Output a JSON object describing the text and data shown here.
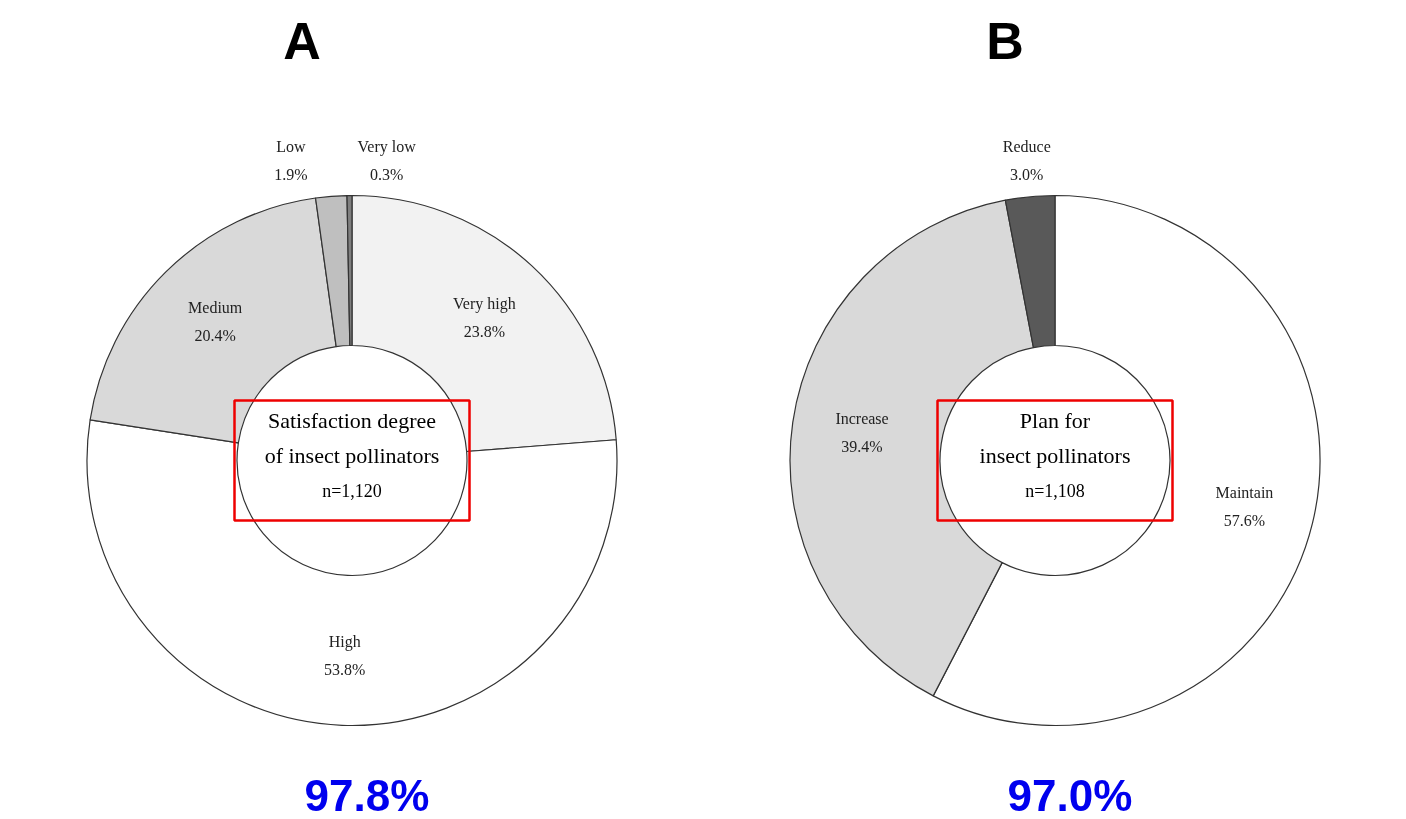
{
  "chart_data": [
    {
      "type": "donut",
      "title": "A",
      "subtitle": "Satisfaction degree\nof insect pollinators\nn=1,120",
      "categories": [
        "Very high",
        "High",
        "Medium",
        "Low",
        "Very low"
      ],
      "values": [
        23.8,
        53.8,
        20.4,
        1.9,
        0.3
      ],
      "value_labels": [
        "23.8%",
        "53.8%",
        "20.4%",
        "1.9%",
        "0.3%"
      ],
      "colors": [
        "#f2f2f2",
        "#ffffff",
        "#d9d9d9",
        "#bfbfbf",
        "#7f7f7f"
      ],
      "annotations": [
        "97.8%"
      ],
      "legend": false
    },
    {
      "type": "donut",
      "title": "B",
      "subtitle": "Plan for\ninsect pollinators\nn=1,108",
      "categories": [
        "Maintain",
        "Increase",
        "Reduce"
      ],
      "values": [
        57.6,
        39.4,
        3.0
      ],
      "value_labels": [
        "57.6%",
        "39.4%",
        "3.0%"
      ],
      "colors": [
        "#ffffff",
        "#d9d9d9",
        "#595959"
      ],
      "annotations": [
        "97.0%"
      ],
      "legend": false
    }
  ]
}
